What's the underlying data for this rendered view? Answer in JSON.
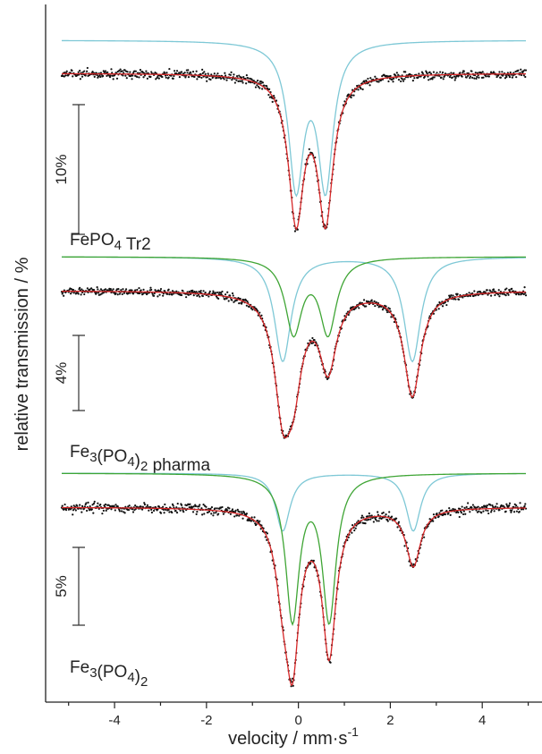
{
  "chart_data": {
    "type": "line",
    "xlabel": "velocity / mm·s",
    "xlabel_superscript": "-1",
    "ylabel": "relative transmission / %",
    "xlim": [
      -5.5,
      5.3
    ],
    "xticks": [
      -4,
      -2,
      0,
      2,
      4
    ],
    "minor_xticks": [
      -5,
      -3,
      -1,
      1,
      3,
      5
    ],
    "colors": {
      "data": "#111111",
      "fit": "#d62728",
      "doublet_1": "#7ec8d6",
      "doublet_2": "#3fa535"
    },
    "panels": [
      {
        "label_parts": [
          "FePO",
          "4",
          " Tr2"
        ],
        "scale_bar_label": "10%",
        "scale_bar_percent": 10,
        "doublets": [
          {
            "center": 0.27,
            "splitting": 0.64,
            "hwhm": 0.2,
            "depth_percent": 12.0,
            "color": "doublet_1"
          }
        ],
        "noise_percent": 0.35
      },
      {
        "label_parts": [
          "Fe",
          "3",
          "(PO",
          "4",
          ")",
          "2",
          " pharma"
        ],
        "scale_bar_label": "4%",
        "scale_bar_percent": 4,
        "doublets": [
          {
            "center": 1.07,
            "splitting": 2.82,
            "hwhm": 0.22,
            "depth_percent": 3.4,
            "color": "doublet_1"
          },
          {
            "center": 0.27,
            "splitting": 0.75,
            "hwhm": 0.22,
            "depth_percent": 2.6,
            "color": "doublet_2"
          }
        ],
        "noise_percent": 0.12
      },
      {
        "label_parts": [
          "Fe",
          "3",
          "(PO",
          "4",
          ")",
          "2"
        ],
        "scale_bar_label": "5%",
        "scale_bar_percent": 5,
        "doublets": [
          {
            "center": 1.08,
            "splitting": 2.84,
            "hwhm": 0.19,
            "depth_percent": 1.8,
            "color": "doublet_1"
          },
          {
            "center": 0.27,
            "splitting": 0.8,
            "hwhm": 0.18,
            "depth_percent": 4.7,
            "color": "doublet_2"
          }
        ],
        "noise_percent": 0.15
      }
    ]
  }
}
